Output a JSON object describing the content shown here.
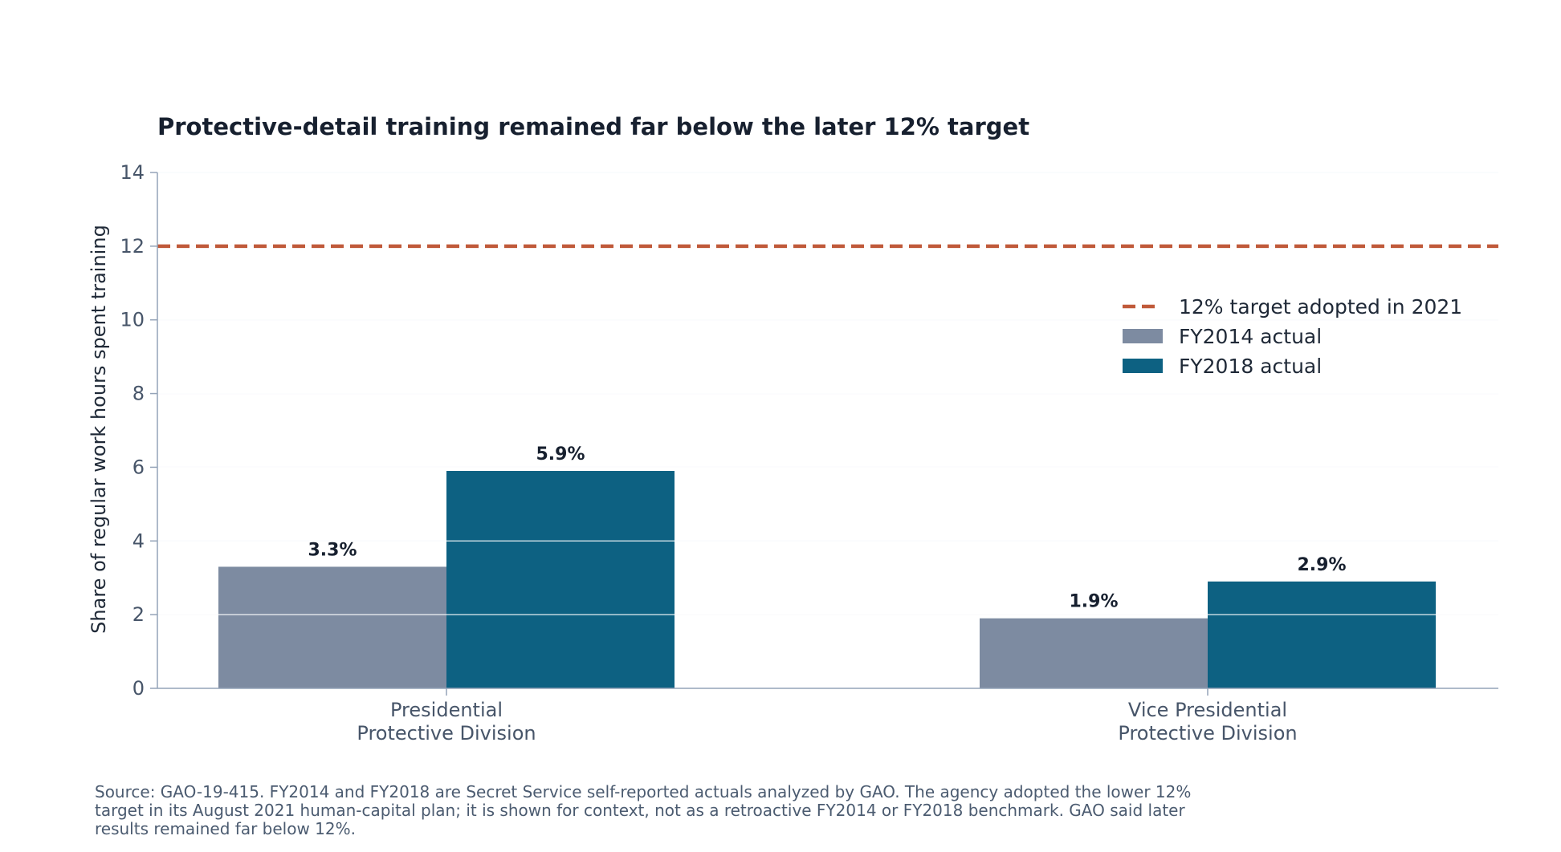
{
  "chart_data": {
    "type": "bar",
    "title": "Protective-detail training remained far below the later 12% target",
    "ylabel": "Share of regular work hours spent training",
    "xlabel": "",
    "ylim": [
      0,
      14
    ],
    "yticks": [
      0,
      2,
      4,
      6,
      8,
      10,
      12,
      14
    ],
    "grid": true,
    "categories": [
      [
        "Presidential",
        "Protective Division"
      ],
      [
        "Vice Presidential",
        "Protective Division"
      ]
    ],
    "series": [
      {
        "name": "FY2014 actual",
        "values": [
          3.3,
          1.9
        ],
        "labels": [
          "3.3%",
          "1.9%"
        ],
        "color": "#7d8ba1"
      },
      {
        "name": "FY2018 actual",
        "values": [
          5.9,
          2.9
        ],
        "labels": [
          "5.9%",
          "2.9%"
        ],
        "color": "#0d6182"
      }
    ],
    "reference_line": {
      "name": "12% target adopted in 2021",
      "value": 12,
      "color": "#c05a3a",
      "style": "dashed"
    },
    "legend_position": "upper-right",
    "source": "Source: GAO-19-415. FY2014 and FY2018 are Secret Service self-reported actuals analyzed by GAO. The agency adopted the lower 12% target in its August 2021 human-capital plan; it is shown for context, not as a retroactive FY2014 or FY2018 benchmark. GAO said later results remained far below 12%."
  },
  "colors": {
    "grid": "#e2e8f0",
    "axis": "#94a3b8",
    "text": "#17202f"
  }
}
